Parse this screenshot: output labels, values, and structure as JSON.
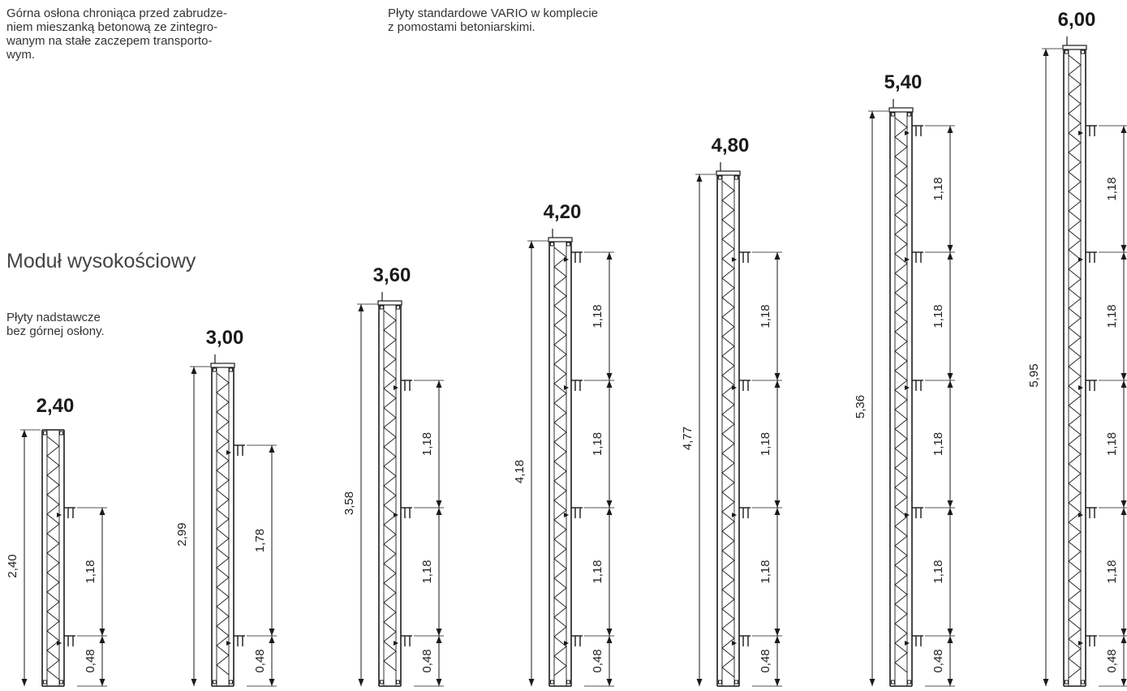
{
  "texts": {
    "top_guard_note": "Górna osłona chroniąca przed zabrudze-\nniem mieszanką betonową ze zintegro-\nwanym na stałe zaczepem transporto-\nwym.",
    "standard_note": "Płyty standardowe VARIO w komplecie\nz pomostami betoniarskimi.",
    "module_title": "Moduł wysokościowy",
    "extension_note": "Płyty nadstawcze\nbez górnej osłony."
  },
  "panels": [
    {
      "height_label": "2,40",
      "total_label": "2,40",
      "segments": [
        "1,18",
        "0,48"
      ],
      "top_guard": false
    },
    {
      "height_label": "3,00",
      "total_label": "2,99",
      "segments": [
        "1,78",
        "0,48"
      ],
      "top_guard": true
    },
    {
      "height_label": "3,60",
      "total_label": "3,58",
      "segments": [
        "1,18",
        "1,18",
        "0,48"
      ],
      "top_guard": true
    },
    {
      "height_label": "4,20",
      "total_label": "4,18",
      "segments": [
        "1,18",
        "1,18",
        "1,18",
        "0,48"
      ],
      "top_guard": true
    },
    {
      "height_label": "4,80",
      "total_label": "4,77",
      "segments": [
        "1,18",
        "1,18",
        "1,18",
        "0,48"
      ],
      "top_guard": true
    },
    {
      "height_label": "5,40",
      "total_label": "5,36",
      "segments": [
        "1,18",
        "1,18",
        "1,18",
        "1,18",
        "0,48"
      ],
      "top_guard": true
    },
    {
      "height_label": "6,00",
      "total_label": "5,95",
      "segments": [
        "1,18",
        "1,18",
        "1,18",
        "1,18",
        "0,48"
      ],
      "top_guard": true
    }
  ]
}
